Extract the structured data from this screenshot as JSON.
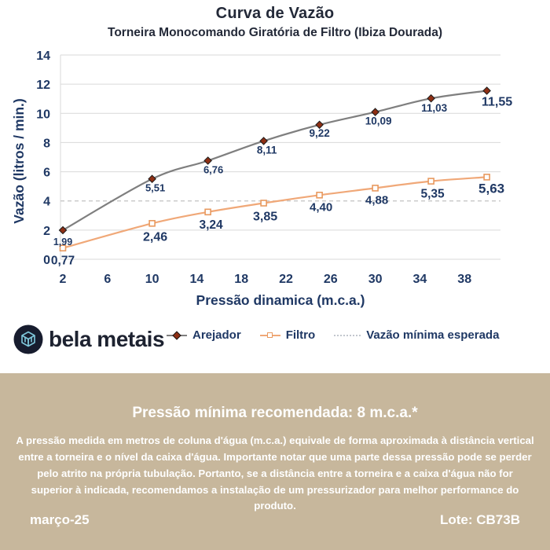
{
  "chart_data": {
    "type": "line",
    "title": "Curva de Vazão",
    "subtitle": "Torneira Monocomando Giratória de Filtro (Ibiza Dourada)",
    "xlabel": "Pressão dinamica (m.c.a.)",
    "ylabel": "Vazão (litros / min.)",
    "x": [
      2,
      10,
      15,
      20,
      25,
      30,
      35,
      40
    ],
    "series": [
      {
        "name": "Arejador",
        "values": [
          1.99,
          5.51,
          6.76,
          8.11,
          9.22,
          10.09,
          11.03,
          11.55
        ],
        "color": "#7f7f7f",
        "marker": "diamond",
        "marker_fill": "#8e2f14",
        "marker_stroke": "#1a1a1a"
      },
      {
        "name": "Filtro",
        "values": [
          0.77,
          2.46,
          3.24,
          3.85,
          4.4,
          4.88,
          5.35,
          5.63
        ],
        "color": "#f0a878",
        "marker": "square",
        "marker_fill": "#ffffff",
        "marker_stroke": "#e8995f"
      }
    ],
    "reference_line": {
      "name": "Vazão mínima esperada",
      "value": 4,
      "color": "#c3c3c3",
      "style": "dashed"
    },
    "xticks": [
      2,
      6,
      10,
      14,
      18,
      22,
      26,
      30,
      34,
      38
    ],
    "yticks": [
      0,
      2,
      4,
      6,
      8,
      10,
      12,
      14
    ],
    "xlim": [
      2,
      41.2
    ],
    "ylim": [
      0,
      14
    ],
    "grid": true,
    "legend_position": "bottom",
    "decimal_separator": ",",
    "text_color": "#1f3864",
    "grid_color": "#d9d9d9"
  },
  "brand": {
    "logo_text": "bela metais",
    "logo_circle_color": "#171c2e",
    "logo_glyph_color": "#7fc8dc"
  },
  "footer": {
    "heading": "Pressão mínima recomendada: 8 m.c.a.*",
    "body": "A pressão medida em metros de coluna d'água (m.c.a.) equivale de forma aproximada à distância vertical entre a torneira e o nível da caixa d'água. Importante notar que uma parte dessa pressão pode se perder pelo atrito na própria tubulação. Portanto, se a distância entre a torneira e a caixa d'água não for superior à indicada, recomendamos a instalação de um pressurizador para melhor performance do produto.",
    "date": "março-25",
    "lot": "Lote: CB73B",
    "background": "#c7b79c"
  }
}
